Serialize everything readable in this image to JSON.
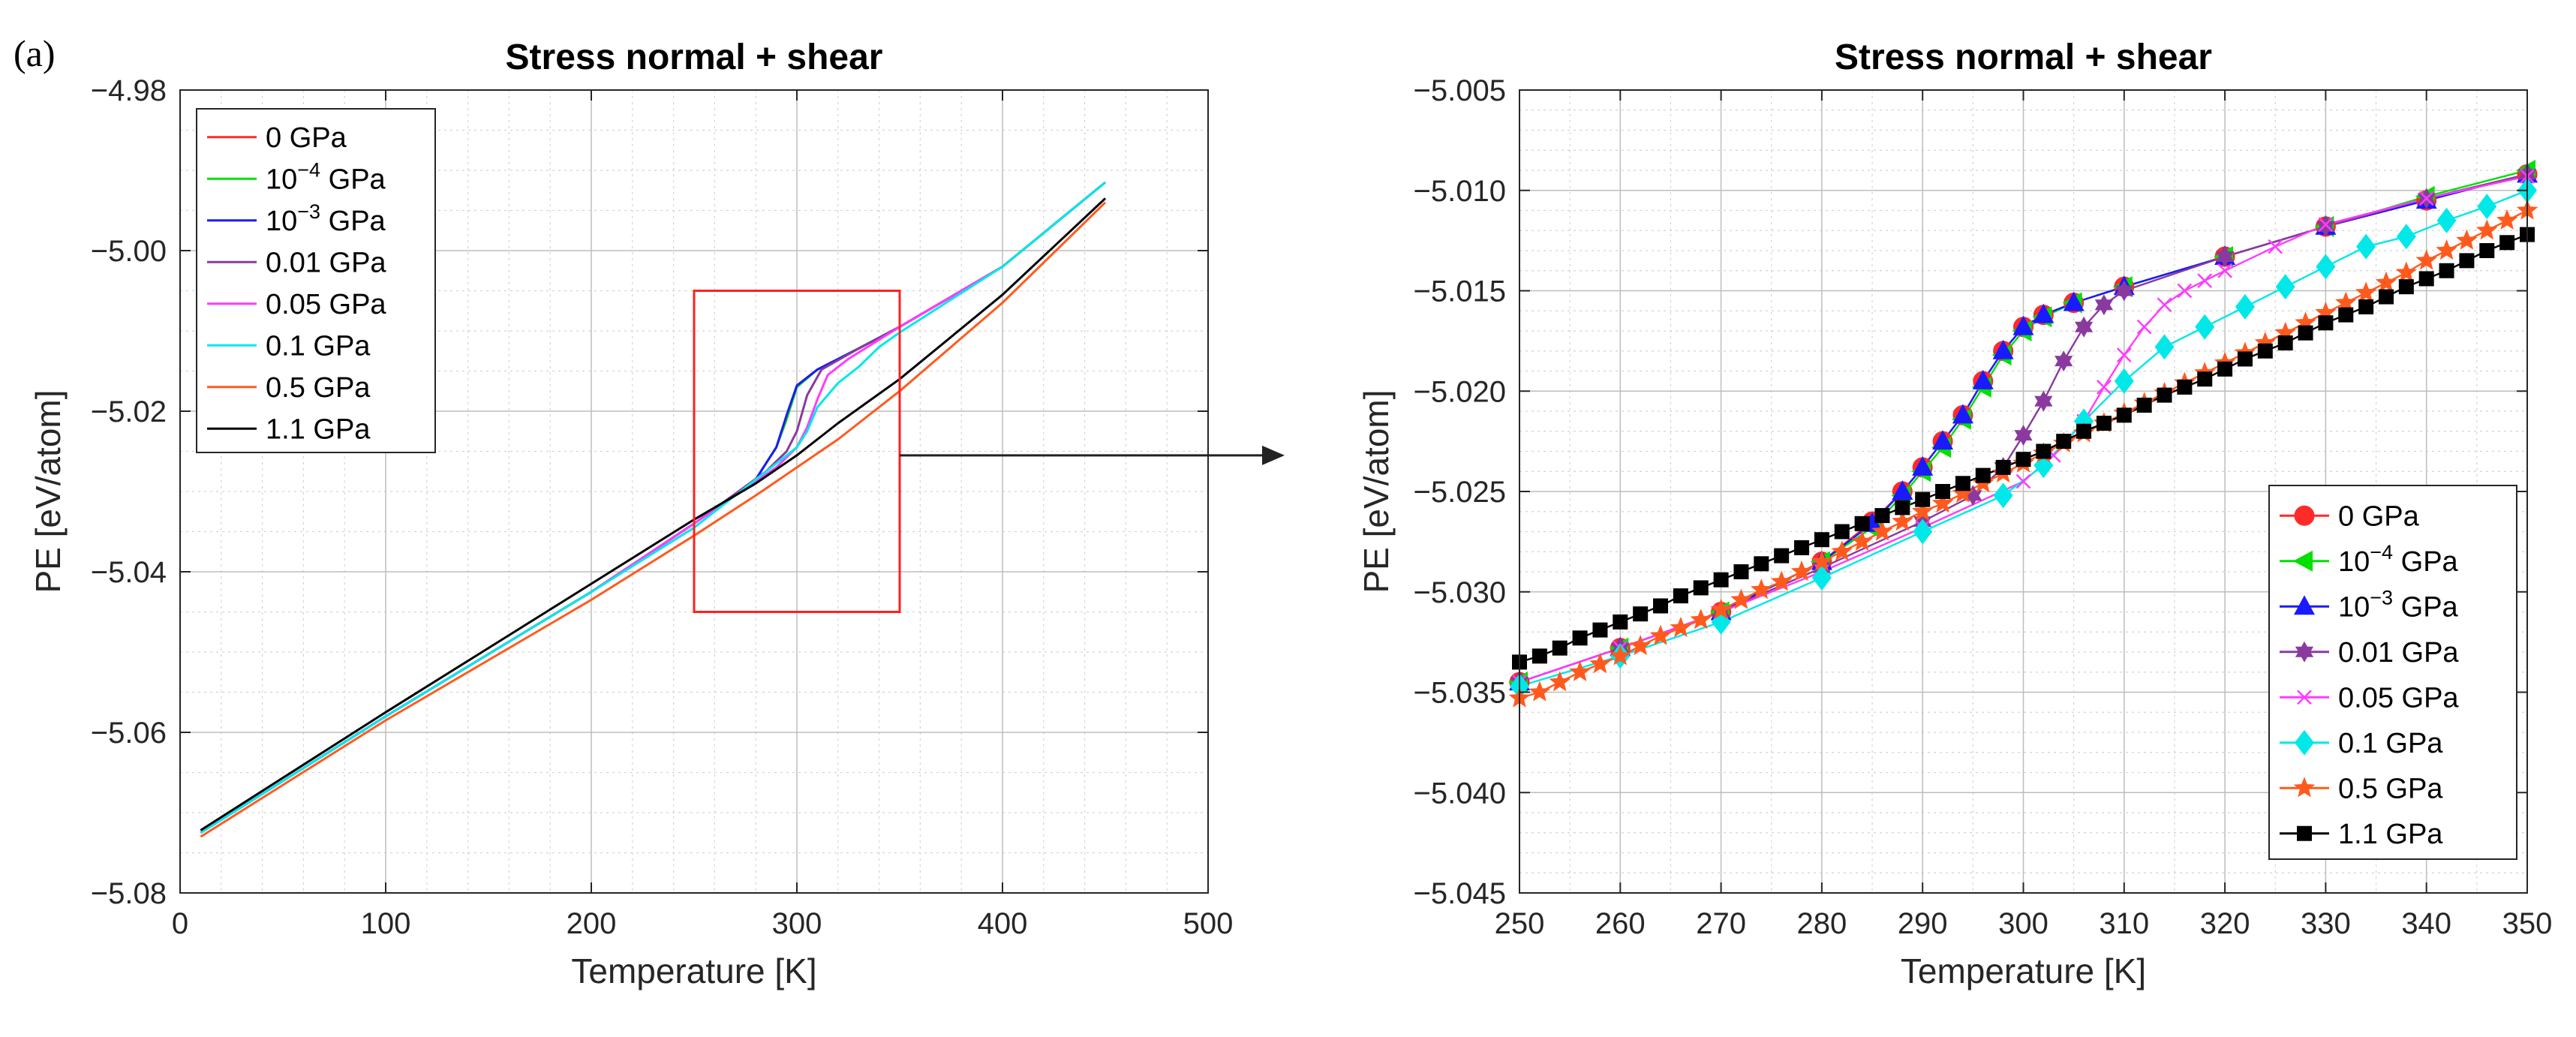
{
  "panel_label": "(a)",
  "arrow": "zoom-arrow",
  "colors": {
    "0 GPa": "#ff2a2a",
    "10^-4 GPa": "#00e000",
    "10^-3 GPa": "#1a1aff",
    "0.01 GPa": "#8a3a9e",
    "0.05 GPa": "#ff3cff",
    "0.1 GPa": "#00e8e8",
    "0.5 GPa": "#ff5a1e",
    "1.1 GPa": "#000000"
  },
  "chart_data": [
    {
      "type": "line",
      "title": "Stress normal + shear",
      "xlabel": "Temperature [K]",
      "ylabel": "PE [eV/atom]",
      "xlim": [
        0,
        500
      ],
      "ylim": [
        -5.08,
        -4.98
      ],
      "xticks": [
        0,
        100,
        200,
        300,
        400,
        500
      ],
      "yticks": [
        -5.08,
        -5.06,
        -5.04,
        -5.02,
        -5.0,
        -4.98
      ],
      "xtick_labels": [
        "0",
        "100",
        "200",
        "300",
        "400",
        "500"
      ],
      "ytick_labels": [
        "−5.08",
        "−5.06",
        "−5.04",
        "−5.02",
        "−5.00",
        "−4.98"
      ],
      "grid": true,
      "legend_position": "top-left",
      "zoom_box": {
        "x": [
          250,
          350
        ],
        "y": [
          -5.045,
          -5.005
        ]
      },
      "series": [
        {
          "name": "0 GPa",
          "label_main": "0 GPa",
          "label_exp": "",
          "label_tail": "",
          "x": [
            10,
            100,
            200,
            250,
            280,
            290,
            295,
            300,
            310,
            330,
            350,
            400,
            450
          ],
          "y": [
            -5.0725,
            -5.058,
            -5.0425,
            -5.034,
            -5.0285,
            -5.0245,
            -5.021,
            -5.0168,
            -5.0148,
            -5.0122,
            -5.0095,
            -5.002,
            -4.9915
          ]
        },
        {
          "name": "10^-4 GPa",
          "label_main": "10",
          "label_exp": "−4",
          "label_tail": " GPa",
          "x": [
            10,
            100,
            200,
            250,
            280,
            290,
            295,
            300,
            310,
            330,
            350,
            400,
            450
          ],
          "y": [
            -5.0725,
            -5.058,
            -5.0425,
            -5.034,
            -5.0285,
            -5.0245,
            -5.021,
            -5.017,
            -5.0148,
            -5.0122,
            -5.0095,
            -5.002,
            -4.9915
          ]
        },
        {
          "name": "10^-3 GPa",
          "label_main": "10",
          "label_exp": "−3",
          "label_tail": " GPa",
          "x": [
            10,
            100,
            200,
            250,
            280,
            290,
            295,
            300,
            310,
            330,
            350,
            400,
            450
          ],
          "y": [
            -5.0725,
            -5.058,
            -5.0425,
            -5.034,
            -5.0285,
            -5.0245,
            -5.0205,
            -5.0168,
            -5.0148,
            -5.0122,
            -5.0095,
            -5.002,
            -4.9915
          ]
        },
        {
          "name": "0.01 GPa",
          "label_main": "0.01 GPa",
          "label_exp": "",
          "label_tail": "",
          "x": [
            10,
            100,
            200,
            250,
            285,
            295,
            300,
            305,
            312,
            330,
            350,
            400,
            450
          ],
          "y": [
            -5.0725,
            -5.058,
            -5.0425,
            -5.034,
            -5.0275,
            -5.025,
            -5.0225,
            -5.018,
            -5.0148,
            -5.0122,
            -5.0095,
            -5.002,
            -4.9915
          ]
        },
        {
          "name": "0.05 GPa",
          "label_main": "0.05 GPa",
          "label_exp": "",
          "label_tail": "",
          "x": [
            10,
            100,
            200,
            250,
            290,
            300,
            305,
            310,
            315,
            325,
            350,
            400,
            450
          ],
          "y": [
            -5.0725,
            -5.058,
            -5.0425,
            -5.034,
            -5.027,
            -5.0245,
            -5.022,
            -5.0185,
            -5.0155,
            -5.0135,
            -5.0095,
            -5.002,
            -4.9915
          ]
        },
        {
          "name": "0.1 GPa",
          "label_main": "0.1 GPa",
          "label_exp": "",
          "label_tail": "",
          "x": [
            10,
            100,
            200,
            250,
            290,
            300,
            305,
            310,
            320,
            330,
            340,
            350,
            400,
            450
          ],
          "y": [
            -5.0725,
            -5.058,
            -5.0425,
            -5.0345,
            -5.0265,
            -5.0245,
            -5.0225,
            -5.0195,
            -5.0165,
            -5.0145,
            -5.012,
            -5.0102,
            -5.002,
            -4.9915
          ]
        },
        {
          "name": "0.5 GPa",
          "label_main": "0.5 GPa",
          "label_exp": "",
          "label_tail": "",
          "x": [
            10,
            100,
            200,
            250,
            280,
            300,
            320,
            350,
            400,
            450
          ],
          "y": [
            -5.073,
            -5.0585,
            -5.0435,
            -5.0355,
            -5.0305,
            -5.027,
            -5.0235,
            -5.0175,
            -5.0065,
            -4.994
          ]
        },
        {
          "name": "1.1 GPa",
          "label_main": "1.1 GPa",
          "label_exp": "",
          "label_tail": "",
          "x": [
            10,
            100,
            200,
            250,
            280,
            300,
            320,
            350,
            400,
            450
          ],
          "y": [
            -5.0722,
            -5.0575,
            -5.0415,
            -5.0335,
            -5.029,
            -5.0255,
            -5.0215,
            -5.016,
            -5.0055,
            -4.9935
          ]
        }
      ]
    },
    {
      "type": "line",
      "title": "Stress normal + shear",
      "xlabel": "Temperature [K]",
      "ylabel": "PE [eV/atom]",
      "xlim": [
        250,
        350
      ],
      "ylim": [
        -5.045,
        -5.005
      ],
      "xticks": [
        250,
        260,
        270,
        280,
        290,
        300,
        310,
        320,
        330,
        340,
        350
      ],
      "yticks": [
        -5.045,
        -5.04,
        -5.035,
        -5.03,
        -5.025,
        -5.02,
        -5.015,
        -5.01,
        -5.005
      ],
      "xtick_labels": [
        "250",
        "260",
        "270",
        "280",
        "290",
        "300",
        "310",
        "320",
        "330",
        "340",
        "350"
      ],
      "ytick_labels": [
        "−5.045",
        "−5.040",
        "−5.035",
        "−5.030",
        "−5.025",
        "−5.020",
        "−5.015",
        "−5.010",
        "−5.005"
      ],
      "grid": true,
      "legend_position": "bottom-right",
      "series": [
        {
          "name": "0 GPa",
          "label_main": "0 GPa",
          "label_exp": "",
          "label_tail": "",
          "marker": "circle",
          "x": [
            250,
            260,
            270,
            280,
            285,
            288,
            290,
            292,
            294,
            296,
            298,
            300,
            302,
            305,
            310,
            320,
            330,
            340,
            350
          ],
          "y": [
            -5.0345,
            -5.0328,
            -5.031,
            -5.0285,
            -5.0265,
            -5.025,
            -5.0238,
            -5.0225,
            -5.0212,
            -5.0195,
            -5.018,
            -5.0168,
            -5.0162,
            -5.0156,
            -5.0148,
            -5.0133,
            -5.0118,
            -5.0105,
            -5.0092
          ]
        },
        {
          "name": "10^-4 GPa",
          "label_main": "10",
          "label_exp": "−4",
          "label_tail": " GPa",
          "marker": "triangle-left",
          "x": [
            250,
            260,
            270,
            280,
            285,
            288,
            290,
            292,
            294,
            296,
            298,
            300,
            302,
            305,
            310,
            320,
            330,
            340,
            350
          ],
          "y": [
            -5.0345,
            -5.0328,
            -5.031,
            -5.0285,
            -5.0268,
            -5.0252,
            -5.024,
            -5.0228,
            -5.0214,
            -5.0198,
            -5.0182,
            -5.017,
            -5.0163,
            -5.0156,
            -5.0148,
            -5.0133,
            -5.0118,
            -5.0103,
            -5.009
          ]
        },
        {
          "name": "10^-3 GPa",
          "label_main": "10",
          "label_exp": "−3",
          "label_tail": " GPa",
          "marker": "triangle-up",
          "x": [
            250,
            260,
            270,
            280,
            285,
            288,
            290,
            292,
            294,
            296,
            298,
            300,
            302,
            305,
            310,
            320,
            330,
            340,
            350
          ],
          "y": [
            -5.0345,
            -5.0328,
            -5.031,
            -5.0285,
            -5.0266,
            -5.025,
            -5.0238,
            -5.0225,
            -5.0212,
            -5.0195,
            -5.018,
            -5.0168,
            -5.0162,
            -5.0156,
            -5.0148,
            -5.0133,
            -5.0118,
            -5.0105,
            -5.0092
          ]
        },
        {
          "name": "0.01 GPa",
          "label_main": "0.01 GPa",
          "label_exp": "",
          "label_tail": "",
          "marker": "hexagram",
          "x": [
            250,
            260,
            270,
            280,
            290,
            295,
            298,
            300,
            302,
            304,
            306,
            308,
            310,
            320,
            330,
            340,
            350
          ],
          "y": [
            -5.0345,
            -5.0328,
            -5.031,
            -5.0288,
            -5.0265,
            -5.0252,
            -5.0238,
            -5.0222,
            -5.0205,
            -5.0185,
            -5.0168,
            -5.0157,
            -5.015,
            -5.0133,
            -5.0118,
            -5.0104,
            -5.0092
          ]
        },
        {
          "name": "0.05 GPa",
          "label_main": "0.05 GPa",
          "label_exp": "",
          "label_tail": "",
          "marker": "x",
          "x": [
            250,
            260,
            270,
            280,
            290,
            300,
            303,
            306,
            308,
            310,
            312,
            314,
            316,
            318,
            320,
            325,
            330,
            340,
            350
          ],
          "y": [
            -5.0345,
            -5.0328,
            -5.031,
            -5.029,
            -5.0268,
            -5.0245,
            -5.0232,
            -5.0215,
            -5.0198,
            -5.0182,
            -5.0168,
            -5.0157,
            -5.015,
            -5.0145,
            -5.014,
            -5.0128,
            -5.0117,
            -5.0104,
            -5.0093
          ]
        },
        {
          "name": "0.1 GPa",
          "label_main": "0.1 GPa",
          "label_exp": "",
          "label_tail": "",
          "marker": "diamond",
          "x": [
            250,
            260,
            270,
            280,
            290,
            298,
            302,
            306,
            310,
            314,
            318,
            322,
            326,
            330,
            334,
            338,
            342,
            346,
            350
          ],
          "y": [
            -5.0347,
            -5.0332,
            -5.0315,
            -5.0293,
            -5.027,
            -5.0252,
            -5.0237,
            -5.0215,
            -5.0195,
            -5.0178,
            -5.0168,
            -5.0158,
            -5.0148,
            -5.0138,
            -5.0128,
            -5.0123,
            -5.0115,
            -5.0108,
            -5.01
          ]
        },
        {
          "name": "0.5 GPa",
          "label_main": "0.5 GPa",
          "label_exp": "",
          "label_tail": "",
          "marker": "pentagram",
          "x": [
            250,
            252,
            254,
            256,
            258,
            260,
            262,
            264,
            266,
            268,
            270,
            272,
            274,
            276,
            278,
            280,
            282,
            284,
            286,
            288,
            290,
            292,
            294,
            296,
            298,
            300,
            302,
            304,
            306,
            308,
            310,
            312,
            314,
            316,
            318,
            320,
            322,
            324,
            326,
            328,
            330,
            332,
            334,
            336,
            338,
            340,
            342,
            344,
            346,
            348,
            350
          ],
          "y": [
            -5.0353,
            -5.035,
            -5.0345,
            -5.034,
            -5.0336,
            -5.0332,
            -5.0327,
            -5.0322,
            -5.0318,
            -5.0314,
            -5.0309,
            -5.0304,
            -5.0299,
            -5.0295,
            -5.029,
            -5.0285,
            -5.028,
            -5.0275,
            -5.027,
            -5.0265,
            -5.026,
            -5.0256,
            -5.0251,
            -5.0246,
            -5.0241,
            -5.0236,
            -5.0231,
            -5.0226,
            -5.0221,
            -5.0216,
            -5.0211,
            -5.0206,
            -5.0201,
            -5.0196,
            -5.0191,
            -5.0186,
            -5.0181,
            -5.0176,
            -5.0171,
            -5.0166,
            -5.0161,
            -5.0156,
            -5.0151,
            -5.0146,
            -5.0141,
            -5.0135,
            -5.013,
            -5.0125,
            -5.012,
            -5.0115,
            -5.011
          ]
        },
        {
          "name": "1.1 GPa",
          "label_main": "1.1 GPa",
          "label_exp": "",
          "label_tail": "",
          "marker": "square",
          "x": [
            250,
            252,
            254,
            256,
            258,
            260,
            262,
            264,
            266,
            268,
            270,
            272,
            274,
            276,
            278,
            280,
            282,
            284,
            286,
            288,
            290,
            292,
            294,
            296,
            298,
            300,
            302,
            304,
            306,
            308,
            310,
            312,
            314,
            316,
            318,
            320,
            322,
            324,
            326,
            328,
            330,
            332,
            334,
            336,
            338,
            340,
            342,
            344,
            346,
            348,
            350
          ],
          "y": [
            -5.0335,
            -5.0332,
            -5.0328,
            -5.0323,
            -5.0319,
            -5.0315,
            -5.0311,
            -5.0307,
            -5.0302,
            -5.0298,
            -5.0294,
            -5.029,
            -5.0286,
            -5.0282,
            -5.0278,
            -5.0274,
            -5.027,
            -5.0266,
            -5.0262,
            -5.0258,
            -5.0254,
            -5.025,
            -5.0246,
            -5.0242,
            -5.0238,
            -5.0234,
            -5.023,
            -5.0225,
            -5.022,
            -5.0216,
            -5.0212,
            -5.0207,
            -5.0202,
            -5.0198,
            -5.0194,
            -5.0189,
            -5.0184,
            -5.018,
            -5.0176,
            -5.0171,
            -5.0166,
            -5.0162,
            -5.0158,
            -5.0153,
            -5.0148,
            -5.0144,
            -5.014,
            -5.0135,
            -5.013,
            -5.0126,
            -5.0122
          ]
        }
      ]
    }
  ]
}
